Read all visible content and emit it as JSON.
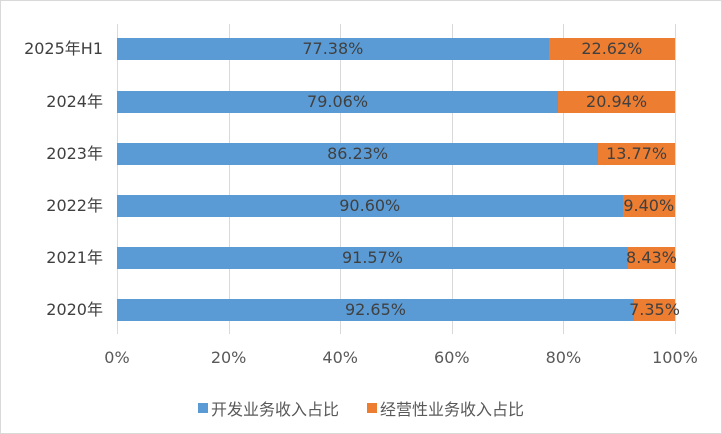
{
  "chart_data": {
    "type": "bar",
    "orientation": "horizontal",
    "stacked": "percent",
    "title": "",
    "xlabel": "",
    "ylabel": "",
    "categories": [
      "2025年H1",
      "2024年",
      "2023年",
      "2022年",
      "2021年",
      "2020年"
    ],
    "series": [
      {
        "name": "开发业务收入占比",
        "color": "#5b9bd5",
        "values": [
          77.38,
          79.06,
          86.23,
          90.6,
          91.57,
          92.65
        ],
        "labels": [
          "77.38%",
          "79.06%",
          "86.23%",
          "90.60%",
          "91.57%",
          "92.65%"
        ]
      },
      {
        "name": "经营性业务收入占比",
        "color": "#ed7d31",
        "values": [
          22.62,
          20.94,
          13.77,
          9.4,
          8.43,
          7.35
        ],
        "labels": [
          "22.62%",
          "20.94%",
          "13.77%",
          "9.40%",
          "8.43%",
          "7.35%"
        ]
      }
    ],
    "xlim": [
      0,
      100
    ],
    "x_ticks": [
      "0%",
      "20%",
      "40%",
      "60%",
      "80%",
      "100%"
    ],
    "grid": "vertical",
    "legend_position": "bottom"
  }
}
